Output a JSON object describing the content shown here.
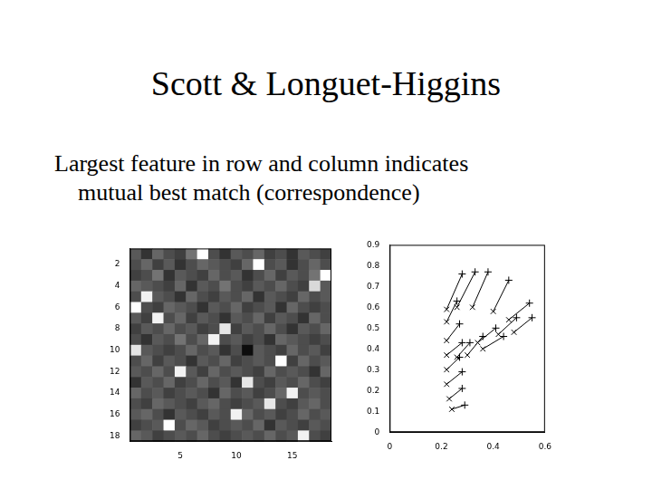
{
  "slide": {
    "title": "Scott & Longuet-Higgins",
    "text": [
      "Largest feature in row and column indicates",
      "mutual best match (correspondence)"
    ]
  },
  "chart_data": [
    {
      "type": "heatmap",
      "color": "gray",
      "xlim": [
        0.5,
        18.5
      ],
      "ylim": [
        0.5,
        18.5
      ],
      "xticks": [
        5,
        10,
        15
      ],
      "yticks": [
        2,
        4,
        6,
        8,
        10,
        12,
        14,
        16,
        18
      ],
      "cells": [
        [
          0.35,
          0.2,
          0.4,
          0.3,
          0.25,
          0.45,
          1.0,
          0.3,
          0.2,
          0.35,
          0.3,
          0.4,
          0.25,
          0.3,
          0.2,
          0.35,
          0.3,
          0.25
        ],
        [
          0.3,
          0.4,
          0.25,
          0.35,
          0.2,
          0.3,
          0.4,
          0.35,
          0.3,
          0.25,
          0.4,
          1.0,
          0.3,
          0.35,
          0.2,
          0.3,
          0.4,
          0.3
        ],
        [
          0.25,
          0.3,
          0.45,
          0.2,
          0.35,
          0.3,
          0.25,
          0.4,
          0.3,
          0.35,
          0.2,
          0.3,
          0.4,
          0.25,
          0.35,
          0.3,
          0.45,
          1.0
        ],
        [
          0.4,
          0.35,
          0.3,
          0.25,
          0.4,
          0.2,
          0.35,
          0.3,
          0.45,
          0.3,
          0.25,
          0.35,
          0.3,
          0.4,
          0.3,
          0.25,
          0.85,
          0.35
        ],
        [
          0.3,
          0.95,
          0.35,
          0.3,
          0.2,
          0.4,
          0.3,
          0.25,
          0.35,
          0.3,
          0.4,
          0.2,
          0.35,
          0.3,
          0.25,
          0.4,
          0.3,
          0.35
        ],
        [
          1.0,
          0.3,
          0.25,
          0.4,
          0.35,
          0.3,
          0.2,
          0.35,
          0.3,
          0.4,
          0.25,
          0.3,
          0.35,
          0.2,
          0.4,
          0.3,
          0.25,
          0.3
        ],
        [
          0.35,
          0.25,
          0.95,
          0.3,
          0.4,
          0.25,
          0.35,
          0.3,
          0.2,
          0.35,
          0.3,
          0.4,
          0.25,
          0.35,
          0.3,
          0.2,
          0.4,
          0.3
        ],
        [
          0.25,
          0.35,
          0.3,
          0.4,
          0.3,
          0.35,
          0.25,
          0.3,
          0.9,
          0.25,
          0.35,
          0.3,
          0.4,
          0.3,
          0.2,
          0.35,
          0.3,
          0.4
        ],
        [
          0.3,
          0.2,
          0.35,
          0.3,
          0.45,
          0.3,
          0.4,
          0.95,
          0.3,
          0.35,
          0.25,
          0.3,
          0.2,
          0.4,
          0.35,
          0.3,
          0.25,
          0.3
        ],
        [
          0.9,
          0.35,
          0.3,
          0.25,
          0.3,
          0.4,
          0.3,
          0.35,
          0.2,
          0.3,
          0.05,
          0.35,
          0.3,
          0.25,
          0.4,
          0.3,
          0.35,
          0.25
        ],
        [
          0.3,
          0.4,
          0.25,
          0.35,
          0.3,
          0.2,
          0.35,
          0.3,
          0.4,
          0.25,
          0.3,
          0.35,
          0.3,
          1.0,
          0.25,
          0.4,
          0.3,
          0.35
        ],
        [
          0.35,
          0.3,
          0.4,
          0.3,
          0.95,
          0.35,
          0.25,
          0.4,
          0.3,
          0.35,
          0.3,
          0.25,
          0.4,
          0.3,
          0.35,
          0.3,
          0.2,
          0.4
        ],
        [
          0.2,
          0.35,
          0.3,
          0.4,
          0.25,
          0.3,
          0.4,
          0.3,
          0.35,
          0.2,
          0.9,
          0.3,
          0.25,
          0.35,
          0.3,
          0.4,
          0.3,
          0.25
        ],
        [
          0.4,
          0.3,
          0.35,
          0.25,
          0.3,
          0.35,
          0.3,
          0.2,
          0.4,
          0.3,
          0.35,
          0.25,
          0.3,
          0.4,
          0.95,
          0.3,
          0.35,
          0.3
        ],
        [
          0.3,
          0.25,
          0.4,
          0.35,
          0.3,
          0.25,
          0.35,
          0.4,
          0.3,
          0.25,
          0.3,
          0.35,
          0.9,
          0.3,
          0.25,
          0.35,
          0.4,
          0.3
        ],
        [
          0.35,
          0.4,
          0.3,
          0.2,
          0.35,
          0.3,
          0.25,
          0.35,
          0.3,
          0.95,
          0.4,
          0.3,
          0.35,
          0.25,
          0.3,
          0.4,
          0.3,
          0.35
        ],
        [
          0.25,
          0.3,
          0.35,
          1.0,
          0.3,
          0.4,
          0.35,
          0.25,
          0.3,
          0.35,
          0.3,
          0.4,
          0.2,
          0.35,
          0.3,
          0.25,
          0.35,
          0.3
        ],
        [
          0.4,
          0.35,
          0.25,
          0.3,
          0.35,
          0.3,
          0.4,
          0.3,
          0.25,
          0.3,
          0.35,
          0.3,
          0.4,
          0.3,
          0.35,
          0.95,
          0.3,
          0.25
        ]
      ]
    },
    {
      "type": "scatter",
      "xlim": [
        0,
        0.6
      ],
      "ylim": [
        0,
        0.9
      ],
      "xticks": [
        0,
        0.2,
        0.4,
        0.6
      ],
      "yticks": [
        0,
        0.1,
        0.2,
        0.3,
        0.4,
        0.5,
        0.6,
        0.7,
        0.8,
        0.9
      ],
      "series": [
        {
          "marker": "x",
          "color": "#000000",
          "x": [
            0.22,
            0.26,
            0.32,
            0.4,
            0.22,
            0.46,
            0.48,
            0.22,
            0.42,
            0.22,
            0.26,
            0.3,
            0.36,
            0.22,
            0.22,
            0.23,
            0.24,
            0.34
          ],
          "y": [
            0.59,
            0.6,
            0.6,
            0.58,
            0.53,
            0.54,
            0.48,
            0.44,
            0.47,
            0.37,
            0.36,
            0.37,
            0.4,
            0.3,
            0.23,
            0.16,
            0.11,
            0.43
          ]
        },
        {
          "marker": "plus",
          "color": "#000000",
          "x": [
            0.28,
            0.33,
            0.38,
            0.46,
            0.26,
            0.54,
            0.55,
            0.27,
            0.49,
            0.28,
            0.31,
            0.36,
            0.44,
            0.27,
            0.28,
            0.28,
            0.29,
            0.41
          ],
          "y": [
            0.76,
            0.77,
            0.77,
            0.73,
            0.63,
            0.62,
            0.55,
            0.52,
            0.55,
            0.43,
            0.43,
            0.46,
            0.46,
            0.36,
            0.29,
            0.21,
            0.13,
            0.5
          ]
        }
      ]
    }
  ]
}
